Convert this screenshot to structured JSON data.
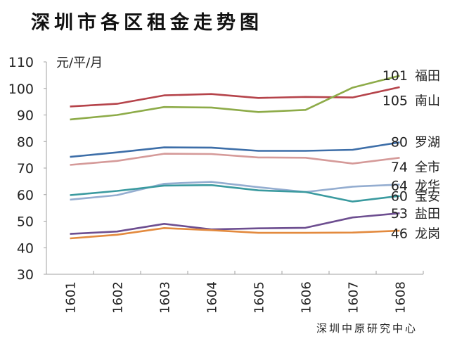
{
  "chart_data": {
    "type": "line",
    "title": "深圳市各区租金走势图",
    "ylabel": "元/平/月",
    "xlabel": "",
    "source": "深圳中原研究中心",
    "ylim": [
      30,
      110
    ],
    "yticks": [
      30,
      40,
      50,
      60,
      70,
      80,
      90,
      100,
      110
    ],
    "grid": false,
    "legend": "end-labels-right",
    "categories": [
      "1601",
      "1602",
      "1603",
      "1604",
      "1605",
      "1606",
      "1607",
      "1608"
    ],
    "series": [
      {
        "name": "福田",
        "end_label": "101",
        "color": "#b5434a",
        "values": [
          93.2,
          94.2,
          97.4,
          97.9,
          96.4,
          96.8,
          96.6,
          100.5
        ]
      },
      {
        "name": "南山",
        "end_label": "105",
        "color": "#8dab48",
        "values": [
          88.3,
          90.0,
          93.0,
          92.8,
          91.1,
          91.9,
          100.3,
          104.8
        ]
      },
      {
        "name": "罗湖",
        "end_label": "80",
        "color": "#3d6ea8",
        "values": [
          74.2,
          75.9,
          77.8,
          77.7,
          76.5,
          76.5,
          76.9,
          79.7
        ]
      },
      {
        "name": "全市",
        "end_label": "74",
        "color": "#d59a99",
        "values": [
          71.2,
          72.7,
          75.4,
          75.3,
          74.0,
          73.9,
          71.7,
          73.9
        ]
      },
      {
        "name": "龙华",
        "end_label": "64",
        "color": "#94add0",
        "values": [
          58.1,
          59.8,
          64.1,
          64.8,
          62.8,
          61.0,
          63.0,
          63.8
        ]
      },
      {
        "name": "宝安",
        "end_label": "60",
        "color": "#3a9a9f",
        "values": [
          59.8,
          61.4,
          63.4,
          63.6,
          61.6,
          61.0,
          57.4,
          59.5
        ]
      },
      {
        "name": "盐田",
        "end_label": "53",
        "color": "#6d4e90",
        "values": [
          45.2,
          46.1,
          49.0,
          46.9,
          47.3,
          47.5,
          51.4,
          53.0
        ]
      },
      {
        "name": "龙岗",
        "end_label": "46",
        "color": "#e38a3e",
        "values": [
          43.5,
          44.9,
          47.4,
          46.6,
          45.6,
          45.6,
          45.7,
          46.4
        ]
      }
    ],
    "label_value_positions": [
      105,
      95.5,
      80,
      70.5,
      63.5,
      59.5,
      53,
      45.5
    ]
  }
}
